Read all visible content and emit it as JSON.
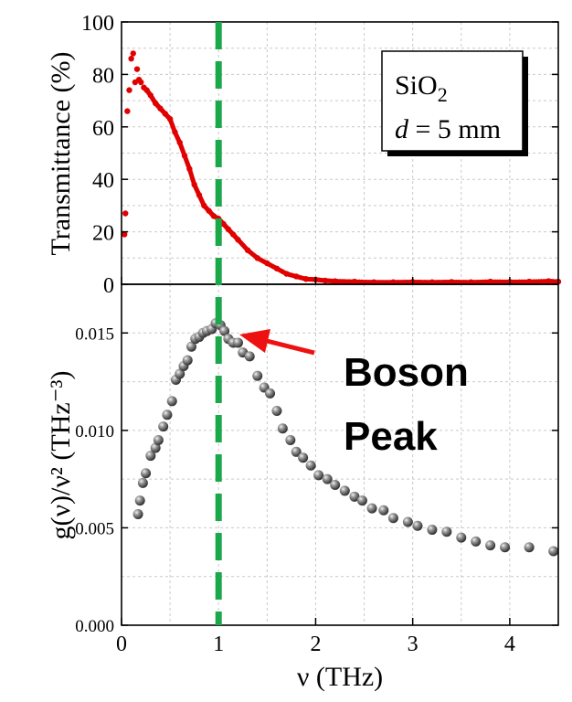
{
  "chart_data": [
    {
      "type": "scatter",
      "panel": "top",
      "ylabel": "Transmittance (%)",
      "xlim": [
        0,
        4.5
      ],
      "ylim": [
        0,
        100
      ],
      "yticks": [
        "0",
        "20",
        "40",
        "60",
        "80",
        "100"
      ],
      "grid": true,
      "marker_color": "#e00000",
      "annotation_box": {
        "line1": "SiO",
        "line1_sub": "2",
        "line2_var": "d",
        "line2_rest": " = 5 mm"
      },
      "series": [
        {
          "x": [
            0.03,
            0.04,
            0.06,
            0.08,
            0.1,
            0.12,
            0.14,
            0.16,
            0.18,
            0.2,
            0.23,
            0.26,
            0.3,
            0.35,
            0.4,
            0.45,
            0.5,
            0.55,
            0.6,
            0.65,
            0.7,
            0.75,
            0.8,
            0.85,
            0.9,
            0.95,
            1.0,
            1.05,
            1.1,
            1.15,
            1.2,
            1.3,
            1.4,
            1.5,
            1.6,
            1.7,
            1.8,
            1.9,
            2.0,
            2.1,
            2.2,
            2.4,
            2.6,
            2.8,
            3.0,
            3.2,
            3.4,
            3.6,
            3.8,
            4.0,
            4.2,
            4.4,
            4.5
          ],
          "y": [
            19,
            27,
            66,
            74,
            86,
            88,
            77,
            82,
            78,
            77,
            75,
            74,
            72,
            69,
            67,
            65,
            63,
            58,
            54,
            49,
            44,
            38,
            34,
            30,
            28,
            26,
            25,
            23,
            21,
            19,
            17,
            13,
            10,
            8,
            6,
            4,
            3,
            2,
            1.8,
            1.4,
            1.2,
            1.0,
            0.8,
            0.8,
            0.9,
            0.8,
            0.9,
            0.8,
            1.0,
            0.9,
            1.0,
            1.2,
            1.0
          ]
        }
      ]
    },
    {
      "type": "scatter",
      "panel": "bottom",
      "xlabel": "ν (THz)",
      "ylabel": "g(ν)/ν² (THz⁻³)",
      "xlim": [
        0,
        4.5
      ],
      "ylim": [
        0,
        0.0175
      ],
      "xticks": [
        "0",
        "1",
        "2",
        "3",
        "4"
      ],
      "yticks": [
        "0.000",
        "0.005",
        "0.010",
        "0.015"
      ],
      "grid": true,
      "marker_color": "#444444",
      "annotation": "Boson Peak",
      "series": [
        {
          "x": [
            0.17,
            0.19,
            0.22,
            0.25,
            0.3,
            0.35,
            0.38,
            0.43,
            0.47,
            0.52,
            0.56,
            0.6,
            0.64,
            0.68,
            0.72,
            0.76,
            0.8,
            0.84,
            0.88,
            0.93,
            0.97,
            1.02,
            1.06,
            1.1,
            1.15,
            1.2,
            1.25,
            1.32,
            1.4,
            1.47,
            1.53,
            1.6,
            1.66,
            1.74,
            1.8,
            1.87,
            1.95,
            2.03,
            2.12,
            2.2,
            2.3,
            2.4,
            2.48,
            2.58,
            2.7,
            2.8,
            2.95,
            3.05,
            3.2,
            3.35,
            3.5,
            3.65,
            3.8,
            3.95,
            4.2,
            4.45
          ],
          "y": [
            0.0057,
            0.0064,
            0.0073,
            0.0078,
            0.0087,
            0.0091,
            0.0095,
            0.0102,
            0.0108,
            0.0115,
            0.0126,
            0.0129,
            0.0133,
            0.0136,
            0.0143,
            0.0147,
            0.0148,
            0.015,
            0.0151,
            0.0152,
            0.0155,
            0.0154,
            0.0151,
            0.0147,
            0.0145,
            0.0145,
            0.014,
            0.0138,
            0.0128,
            0.0122,
            0.0119,
            0.011,
            0.0101,
            0.0095,
            0.0089,
            0.0086,
            0.0082,
            0.0077,
            0.0075,
            0.0072,
            0.0069,
            0.0066,
            0.0064,
            0.006,
            0.0059,
            0.0055,
            0.0053,
            0.0051,
            0.0049,
            0.0048,
            0.0045,
            0.0043,
            0.0041,
            0.004,
            0.004,
            0.0038
          ]
        }
      ]
    }
  ],
  "reference_line": {
    "x": 1,
    "color": "#1aa84a"
  },
  "colors": {
    "axis": "#000000",
    "grid": "#c9c9c9",
    "arrow": "#ee1111"
  }
}
